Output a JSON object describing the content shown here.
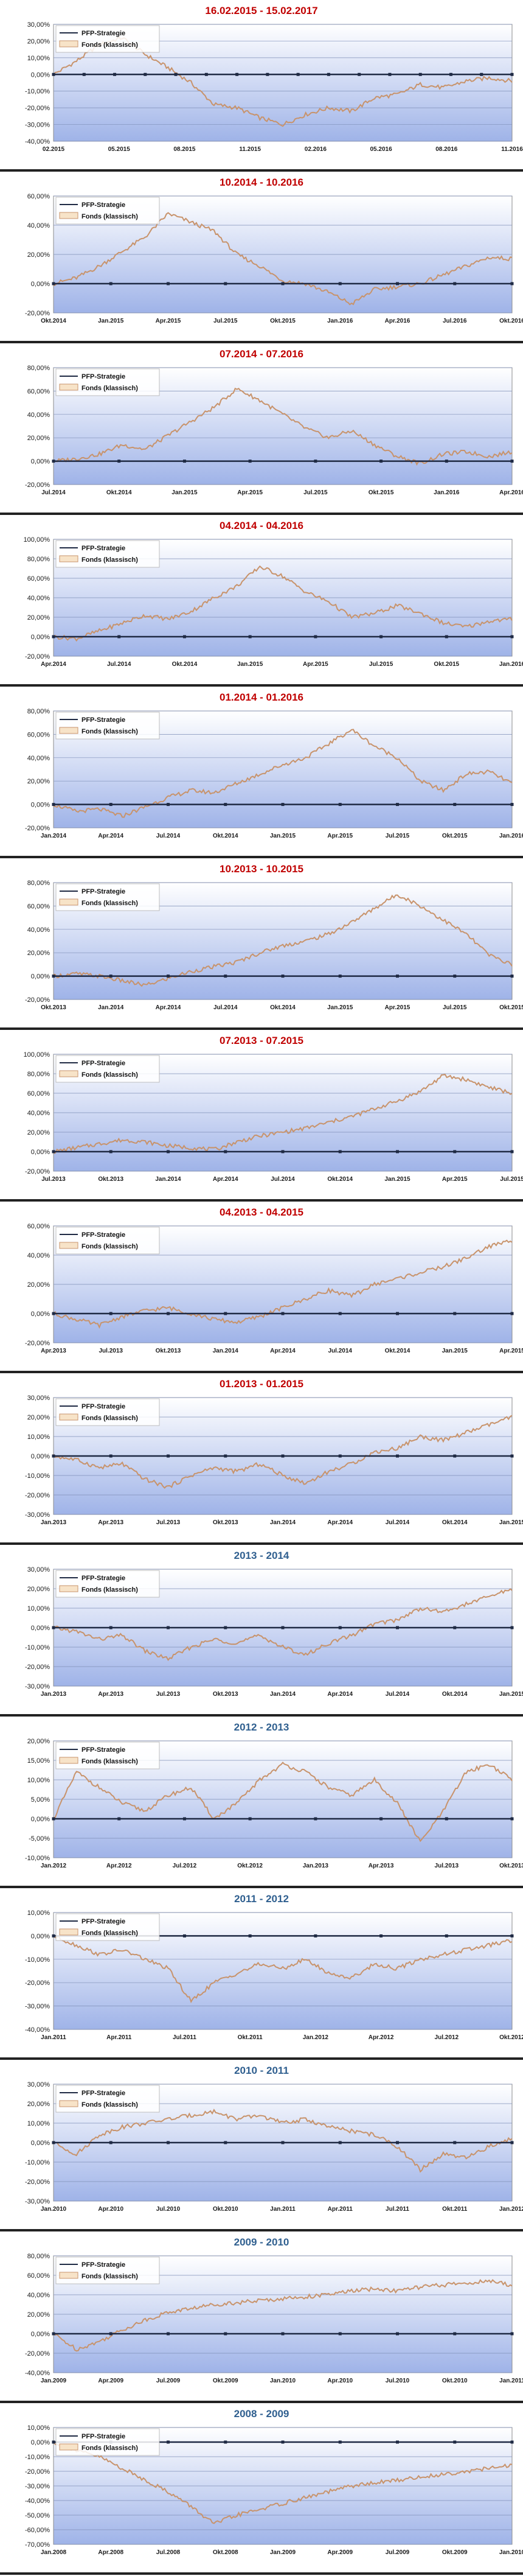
{
  "legend": {
    "series_1": "PFP-Strategie",
    "series_2": "Fonds (klassisch)"
  },
  "colors": {
    "title_red": "#c00000",
    "title_blue": "#2f5f8f",
    "fund_line": "#c8936b",
    "strategy_line": "#1f2a44",
    "plot_top": "#ffffff",
    "plot_bottom": "#9fb3e8"
  },
  "chart_data": [
    {
      "type": "line",
      "title": "16.02.2015 - 15.02.2017",
      "title_color": "red",
      "x_labels": [
        "02.2015",
        "05.2015",
        "08.2015",
        "11.2015",
        "02.2016",
        "05.2016",
        "08.2016",
        "11.2016"
      ],
      "y_ticks": [
        "30,00%",
        "20,00%",
        "10,00%",
        "0,00%",
        "-10,00%",
        "-20,00%",
        "-30,00%",
        "-40,00%"
      ],
      "ylim": [
        -40,
        30
      ],
      "series": [
        {
          "name": "PFP-Strategie",
          "values": [
            0,
            0,
            0,
            0,
            0,
            0,
            0,
            0,
            0,
            0,
            0,
            0,
            0,
            0,
            0,
            0
          ]
        },
        {
          "name": "Fonds (klassisch)",
          "values": [
            0,
            8,
            18,
            22,
            12,
            4,
            -5,
            -18,
            -20,
            -26,
            -30,
            -24,
            -20,
            -22,
            -14,
            -12,
            -6,
            -8,
            -4,
            -2,
            -4
          ]
        }
      ]
    },
    {
      "type": "line",
      "title": "10.2014 - 10.2016",
      "title_color": "red",
      "x_labels": [
        "Okt.2014",
        "Jan.2015",
        "Apr.2015",
        "Jul.2015",
        "Okt.2015",
        "Jan.2016",
        "Apr.2016",
        "Jul.2016",
        "Okt.2016"
      ],
      "y_ticks": [
        "60,00%",
        "40,00%",
        "20,00%",
        "0,00%",
        "-20,00%"
      ],
      "ylim": [
        -20,
        60
      ],
      "series": [
        {
          "name": "PFP-Strategie",
          "values": [
            0,
            0,
            0,
            0,
            0,
            0,
            0,
            0,
            0
          ]
        },
        {
          "name": "Fonds (klassisch)",
          "values": [
            0,
            4,
            12,
            22,
            32,
            48,
            42,
            36,
            20,
            12,
            2,
            0,
            -6,
            -14,
            -4,
            -2,
            0,
            6,
            12,
            18,
            17
          ]
        }
      ]
    },
    {
      "type": "line",
      "title": "07.2014 - 07.2016",
      "title_color": "red",
      "x_labels": [
        "Jul.2014",
        "Okt.2014",
        "Jan.2015",
        "Apr.2015",
        "Jul.2015",
        "Okt.2015",
        "Jan.2016",
        "Apr.2016"
      ],
      "y_ticks": [
        "80,00%",
        "60,00%",
        "40,00%",
        "20,00%",
        "0,00%",
        "-20,00%"
      ],
      "ylim": [
        -20,
        80
      ],
      "series": [
        {
          "name": "PFP-Strategie",
          "values": [
            0,
            0,
            0,
            0,
            0,
            0,
            0,
            0
          ]
        },
        {
          "name": "Fonds (klassisch)",
          "values": [
            0,
            2,
            6,
            14,
            10,
            22,
            34,
            46,
            62,
            52,
            40,
            28,
            20,
            26,
            14,
            4,
            -2,
            6,
            8,
            4,
            8
          ]
        }
      ]
    },
    {
      "type": "line",
      "title": "04.2014 - 04.2016",
      "title_color": "red",
      "x_labels": [
        "Apr.2014",
        "Jul.2014",
        "Okt.2014",
        "Jan.2015",
        "Apr.2015",
        "Jul.2015",
        "Okt.2015",
        "Jan.2016"
      ],
      "y_ticks": [
        "100,00%",
        "80,00%",
        "60,00%",
        "40,00%",
        "20,00%",
        "0,00%",
        "-20,00%"
      ],
      "ylim": [
        -20,
        100
      ],
      "series": [
        {
          "name": "PFP-Strategie",
          "values": [
            0,
            0,
            0,
            0,
            0,
            0,
            0,
            0
          ]
        },
        {
          "name": "Fonds (klassisch)",
          "values": [
            0,
            -2,
            6,
            14,
            22,
            18,
            26,
            40,
            52,
            72,
            62,
            46,
            36,
            20,
            24,
            32,
            24,
            14,
            10,
            16,
            18
          ]
        }
      ]
    },
    {
      "type": "line",
      "title": "01.2014 - 01.2016",
      "title_color": "red",
      "x_labels": [
        "Jan.2014",
        "Apr.2014",
        "Jul.2014",
        "Okt.2014",
        "Jan.2015",
        "Apr.2015",
        "Jul.2015",
        "Okt.2015",
        "Jan.2016"
      ],
      "y_ticks": [
        "80,00%",
        "60,00%",
        "40,00%",
        "20,00%",
        "0,00%",
        "-20,00%"
      ],
      "ylim": [
        -20,
        80
      ],
      "series": [
        {
          "name": "PFP-Strategie",
          "values": [
            0,
            0,
            0,
            0,
            0,
            0,
            0,
            0,
            0
          ]
        },
        {
          "name": "Fonds (klassisch)",
          "values": [
            0,
            -6,
            -4,
            -10,
            -2,
            6,
            12,
            10,
            18,
            26,
            34,
            40,
            52,
            64,
            50,
            40,
            20,
            12,
            26,
            28,
            18
          ]
        }
      ]
    },
    {
      "type": "line",
      "title": "10.2013 - 10.2015",
      "title_color": "red",
      "x_labels": [
        "Okt.2013",
        "Jan.2014",
        "Apr.2014",
        "Jul.2014",
        "Okt.2014",
        "Jan.2015",
        "Apr.2015",
        "Jul.2015",
        "Okt.2015"
      ],
      "y_ticks": [
        "80,00%",
        "60,00%",
        "40,00%",
        "20,00%",
        "0,00%",
        "-20,00%"
      ],
      "ylim": [
        -20,
        80
      ],
      "series": [
        {
          "name": "PFP-Strategie",
          "values": [
            0,
            0,
            0,
            0,
            0,
            0,
            0,
            0,
            0
          ]
        },
        {
          "name": "Fonds (klassisch)",
          "values": [
            0,
            2,
            0,
            -4,
            -8,
            -2,
            4,
            8,
            12,
            20,
            26,
            30,
            36,
            46,
            58,
            70,
            60,
            48,
            36,
            18,
            10
          ]
        }
      ]
    },
    {
      "type": "line",
      "title": "07.2013 - 07.2015",
      "title_color": "red",
      "x_labels": [
        "Jul.2013",
        "Okt.2013",
        "Jan.2014",
        "Apr.2014",
        "Jul.2014",
        "Okt.2014",
        "Jan.2015",
        "Apr.2015",
        "Jul.2015"
      ],
      "y_ticks": [
        "100,00%",
        "80,00%",
        "60,00%",
        "40,00%",
        "20,00%",
        "0,00%",
        "-20,00%"
      ],
      "ylim": [
        -20,
        100
      ],
      "series": [
        {
          "name": "PFP-Strategie",
          "values": [
            0,
            0,
            0,
            0,
            0,
            0,
            0,
            0,
            0
          ]
        },
        {
          "name": "Fonds (klassisch)",
          "values": [
            0,
            4,
            8,
            12,
            10,
            6,
            4,
            2,
            10,
            16,
            20,
            24,
            30,
            36,
            44,
            52,
            62,
            78,
            74,
            66,
            60
          ]
        }
      ]
    },
    {
      "type": "line",
      "title": "04.2013 - 04.2015",
      "title_color": "red",
      "x_labels": [
        "Apr.2013",
        "Jul.2013",
        "Okt.2013",
        "Jan.2014",
        "Apr.2014",
        "Jul.2014",
        "Okt.2014",
        "Jan.2015",
        "Apr.2015"
      ],
      "y_ticks": [
        "60,00%",
        "40,00%",
        "20,00%",
        "0,00%",
        "-20,00%"
      ],
      "ylim": [
        -20,
        60
      ],
      "series": [
        {
          "name": "PFP-Strategie",
          "values": [
            0,
            0,
            0,
            0,
            0,
            0,
            0,
            0,
            0
          ]
        },
        {
          "name": "Fonds (klassisch)",
          "values": [
            0,
            -4,
            -8,
            -2,
            2,
            4,
            0,
            -4,
            -6,
            -2,
            4,
            10,
            16,
            12,
            20,
            24,
            28,
            32,
            38,
            46,
            50
          ]
        }
      ]
    },
    {
      "type": "line",
      "title": "01.2013 - 01.2015",
      "title_color": "red",
      "x_labels": [
        "Jan.2013",
        "Apr.2013",
        "Jul.2013",
        "Okt.2013",
        "Jan.2014",
        "Apr.2014",
        "Jul.2014",
        "Okt.2014",
        "Jan.2015"
      ],
      "y_ticks": [
        "30,00%",
        "20,00%",
        "10,00%",
        "0,00%",
        "-10,00%",
        "-20,00%",
        "-30,00%"
      ],
      "ylim": [
        -30,
        30
      ],
      "series": [
        {
          "name": "PFP-Strategie",
          "values": [
            0,
            0,
            0,
            0,
            0,
            0,
            0,
            0,
            0
          ]
        },
        {
          "name": "Fonds (klassisch)",
          "values": [
            0,
            -2,
            -6,
            -4,
            -12,
            -16,
            -10,
            -6,
            -8,
            -4,
            -10,
            -14,
            -8,
            -4,
            2,
            4,
            10,
            8,
            12,
            16,
            20
          ]
        }
      ]
    },
    {
      "type": "line",
      "title": "2013 - 2014",
      "title_color": "blue",
      "x_labels": [
        "Jan.2013",
        "Apr.2013",
        "Jul.2013",
        "Okt.2013",
        "Jan.2014",
        "Apr.2014",
        "Jul.2014",
        "Okt.2014",
        "Jan.2015"
      ],
      "y_ticks": [
        "30,00%",
        "20,00%",
        "10,00%",
        "0,00%",
        "-10,00%",
        "-20,00%",
        "-30,00%"
      ],
      "ylim": [
        -30,
        30
      ],
      "series": [
        {
          "name": "PFP-Strategie",
          "values": [
            0,
            0,
            0,
            0,
            0,
            0,
            0,
            0,
            0
          ]
        },
        {
          "name": "Fonds (klassisch)",
          "values": [
            0,
            -2,
            -6,
            -4,
            -12,
            -16,
            -10,
            -6,
            -8,
            -4,
            -10,
            -14,
            -8,
            -4,
            2,
            4,
            10,
            8,
            12,
            16,
            20
          ]
        }
      ]
    },
    {
      "type": "line",
      "title": "2012 - 2013",
      "title_color": "blue",
      "x_labels": [
        "Jan.2012",
        "Apr.2012",
        "Jul.2012",
        "Okt.2012",
        "Jan.2013",
        "Apr.2013",
        "Jul.2013",
        "Okt.2013"
      ],
      "y_ticks": [
        "20,00%",
        "15,00%",
        "10,00%",
        "5,00%",
        "0,00%",
        "-5,00%",
        "-10,00%"
      ],
      "ylim": [
        -10,
        20
      ],
      "series": [
        {
          "name": "PFP-Strategie",
          "values": [
            0,
            0,
            0,
            0,
            0,
            0,
            0,
            0
          ]
        },
        {
          "name": "Fonds (klassisch)",
          "values": [
            0,
            12,
            8,
            4,
            2,
            6,
            8,
            0,
            4,
            10,
            14,
            12,
            8,
            6,
            10,
            4,
            -6,
            2,
            12,
            14,
            10
          ]
        }
      ]
    },
    {
      "type": "line",
      "title": "2011 - 2012",
      "title_color": "blue",
      "x_labels": [
        "Jan.2011",
        "Apr.2011",
        "Jul.2011",
        "Okt.2011",
        "Jan.2012",
        "Apr.2012",
        "Jul.2012",
        "Okt.2012"
      ],
      "y_ticks": [
        "10,00%",
        "0,00%",
        "-10,00%",
        "-20,00%",
        "-30,00%",
        "-40,00%"
      ],
      "ylim": [
        -40,
        10
      ],
      "series": [
        {
          "name": "PFP-Strategie",
          "values": [
            0,
            0,
            0,
            0,
            0,
            0,
            0,
            0
          ]
        },
        {
          "name": "Fonds (klassisch)",
          "values": [
            0,
            -4,
            -8,
            -6,
            -10,
            -14,
            -28,
            -20,
            -16,
            -12,
            -14,
            -10,
            -16,
            -18,
            -12,
            -14,
            -10,
            -8,
            -6,
            -4,
            -2
          ]
        }
      ]
    },
    {
      "type": "line",
      "title": "2010 - 2011",
      "title_color": "blue",
      "x_labels": [
        "Jan.2010",
        "Apr.2010",
        "Jul.2010",
        "Okt.2010",
        "Jan.2011",
        "Apr.2011",
        "Jul.2011",
        "Okt.2011",
        "Jan.2012"
      ],
      "y_ticks": [
        "30,00%",
        "20,00%",
        "10,00%",
        "0,00%",
        "-10,00%",
        "-20,00%",
        "-30,00%"
      ],
      "ylim": [
        -30,
        30
      ],
      "series": [
        {
          "name": "PFP-Strategie",
          "values": [
            0,
            0,
            0,
            0,
            0,
            0,
            0,
            0,
            0
          ]
        },
        {
          "name": "Fonds (klassisch)",
          "values": [
            0,
            -6,
            4,
            8,
            10,
            12,
            14,
            16,
            12,
            14,
            10,
            12,
            8,
            6,
            4,
            -2,
            -14,
            -6,
            -8,
            -2,
            2
          ]
        }
      ]
    },
    {
      "type": "line",
      "title": "2009 - 2010",
      "title_color": "blue",
      "x_labels": [
        "Jan.2009",
        "Apr.2009",
        "Jul.2009",
        "Okt.2009",
        "Jan.2010",
        "Apr.2010",
        "Jul.2010",
        "Okt.2010",
        "Jan.2011"
      ],
      "y_ticks": [
        "80,00%",
        "60,00%",
        "40,00%",
        "20,00%",
        "0,00%",
        "-20,00%",
        "-40,00%"
      ],
      "ylim": [
        -40,
        80
      ],
      "series": [
        {
          "name": "PFP-Strategie",
          "values": [
            0,
            0,
            0,
            0,
            0,
            0,
            0,
            0,
            0
          ]
        },
        {
          "name": "Fonds (klassisch)",
          "values": [
            0,
            -16,
            -8,
            4,
            14,
            22,
            26,
            30,
            32,
            34,
            36,
            38,
            40,
            44,
            46,
            44,
            48,
            50,
            52,
            54,
            50
          ]
        }
      ]
    },
    {
      "type": "line",
      "title": "2008 - 2009",
      "title_color": "blue",
      "x_labels": [
        "Jan.2008",
        "Apr.2008",
        "Jul.2008",
        "Okt.2008",
        "Jan.2009",
        "Apr.2009",
        "Jul.2009",
        "Okt.2009",
        "Jan.2010"
      ],
      "y_ticks": [
        "10,00%",
        "0,00%",
        "-10,00%",
        "-20,00%",
        "-30,00%",
        "-40,00%",
        "-50,00%",
        "-60,00%",
        "-70,00%"
      ],
      "ylim": [
        -70,
        10
      ],
      "series": [
        {
          "name": "PFP-Strategie",
          "values": [
            0,
            0,
            0,
            0,
            0,
            0,
            0,
            0,
            0
          ]
        },
        {
          "name": "Fonds (klassisch)",
          "values": [
            0,
            -6,
            -10,
            -18,
            -26,
            -34,
            -44,
            -56,
            -50,
            -46,
            -42,
            -38,
            -34,
            -30,
            -28,
            -26,
            -24,
            -22,
            -20,
            -18,
            -16
          ]
        }
      ]
    }
  ]
}
